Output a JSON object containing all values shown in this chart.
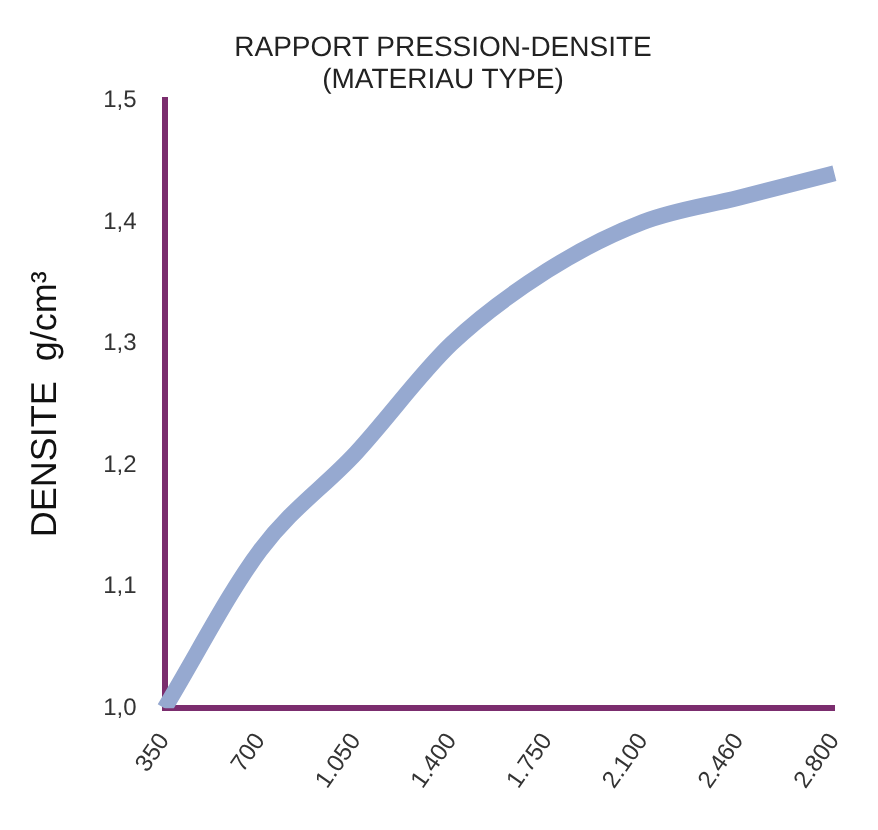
{
  "chart_data": {
    "type": "line",
    "title": "RAPPORT PRESSION-DENSITE\n(MATERIAU TYPE)",
    "ylabel": "DENSITE  g/cm³",
    "categories": [
      "350",
      "700",
      "1.050",
      "1.400",
      "1.750",
      "2.100",
      "2.460",
      "2.800"
    ],
    "series": [
      {
        "color": "#96a9d0",
        "values": [
          1.0,
          1.13,
          1.21,
          1.3,
          1.36,
          1.4,
          1.42,
          1.44
        ]
      }
    ],
    "ylim": [
      1.0,
      1.5
    ],
    "yticks": [
      {
        "value": 1.0,
        "label": "1,0"
      },
      {
        "value": 1.1,
        "label": "1,1"
      },
      {
        "value": 1.2,
        "label": "1,2"
      },
      {
        "value": 1.3,
        "label": "1,3"
      },
      {
        "value": 1.4,
        "label": "1,4"
      },
      {
        "value": 1.5,
        "label": "1,5"
      }
    ],
    "grid": false,
    "legend": false,
    "marker": "none",
    "line_style": "solid"
  }
}
